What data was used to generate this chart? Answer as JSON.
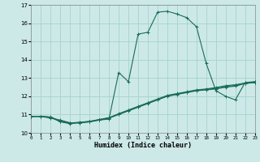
{
  "title": "",
  "xlabel": "Humidex (Indice chaleur)",
  "xlim": [
    0,
    23
  ],
  "ylim": [
    10,
    17
  ],
  "yticks": [
    10,
    11,
    12,
    13,
    14,
    15,
    16,
    17
  ],
  "xticks": [
    0,
    1,
    2,
    3,
    4,
    5,
    6,
    7,
    8,
    9,
    10,
    11,
    12,
    13,
    14,
    15,
    16,
    17,
    18,
    19,
    20,
    21,
    22,
    23
  ],
  "background_color": "#cce9e8",
  "grid_color": "#aad4d3",
  "line_color": "#1a6b5a",
  "series": [
    {
      "x": [
        0,
        1,
        2,
        3,
        4,
        5,
        6,
        7,
        8,
        9,
        10,
        11,
        12,
        13,
        14,
        15,
        16,
        17,
        18,
        19,
        20,
        21,
        22,
        23
      ],
      "y": [
        10.9,
        10.9,
        10.8,
        10.7,
        10.55,
        10.55,
        10.6,
        10.7,
        10.75,
        13.3,
        12.8,
        15.4,
        15.5,
        16.6,
        16.65,
        16.5,
        16.3,
        15.8,
        13.8,
        12.3,
        12.0,
        11.8,
        12.75,
        12.8
      ]
    },
    {
      "x": [
        0,
        1,
        2,
        3,
        4,
        5,
        6,
        7,
        8,
        9,
        10,
        11,
        12,
        13,
        14,
        15,
        16,
        17,
        18,
        19,
        20,
        21,
        22,
        23
      ],
      "y": [
        10.9,
        10.9,
        10.85,
        10.6,
        10.5,
        10.55,
        10.6,
        10.7,
        10.8,
        11.0,
        11.2,
        11.4,
        11.6,
        11.8,
        12.0,
        12.1,
        12.2,
        12.3,
        12.35,
        12.4,
        12.5,
        12.55,
        12.7,
        12.75
      ]
    },
    {
      "x": [
        0,
        1,
        2,
        3,
        4,
        5,
        6,
        7,
        8,
        9,
        10,
        11,
        12,
        13,
        14,
        15,
        16,
        17,
        18,
        19,
        20,
        21,
        22,
        23
      ],
      "y": [
        10.9,
        10.9,
        10.85,
        10.62,
        10.52,
        10.57,
        10.62,
        10.72,
        10.82,
        11.05,
        11.25,
        11.45,
        11.65,
        11.85,
        12.05,
        12.15,
        12.25,
        12.35,
        12.4,
        12.48,
        12.58,
        12.63,
        12.73,
        12.78
      ]
    },
    {
      "x": [
        0,
        1,
        2,
        3,
        4,
        5,
        6,
        7,
        8,
        9,
        10,
        11,
        12,
        13,
        14,
        15,
        16,
        17,
        18,
        19,
        20,
        21,
        22,
        23
      ],
      "y": [
        10.9,
        10.9,
        10.87,
        10.65,
        10.54,
        10.58,
        10.63,
        10.73,
        10.83,
        11.02,
        11.22,
        11.42,
        11.62,
        11.82,
        12.02,
        12.12,
        12.22,
        12.32,
        12.38,
        12.43,
        12.53,
        12.6,
        12.7,
        12.76
      ]
    }
  ]
}
